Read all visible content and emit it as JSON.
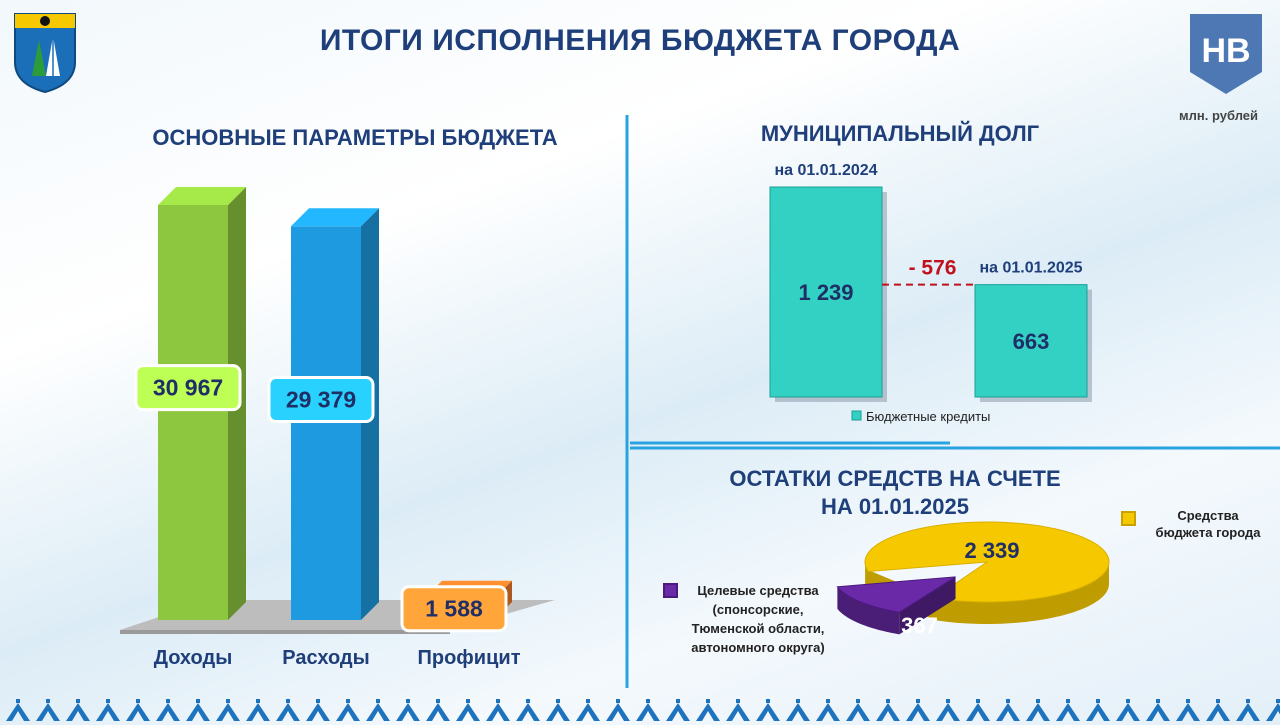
{
  "header": {
    "title": "ИТОГИ ИСПОЛНЕНИЯ БЮДЖЕТА ГОРОДА",
    "logo_text": "НВ",
    "units": "млн. рублей"
  },
  "colors": {
    "green": "#8dc63f",
    "blue": "#1e9be0",
    "orange": "#f07a2a",
    "teal": "#33d1c4",
    "yellow": "#f5c800",
    "purple": "#6a2aa8",
    "title": "#1f3f7a",
    "delta": "#c0121c"
  },
  "chart_data": [
    {
      "id": "budget-params",
      "type": "bar",
      "title": "ОСНОВНЫЕ ПАРАМЕТРЫ БЮДЖЕТА",
      "categories": [
        "Доходы",
        "Расходы",
        "Профицит"
      ],
      "values": [
        30967,
        29379,
        1588
      ],
      "value_labels": [
        "30 967",
        "29 379",
        "1 588"
      ]
    },
    {
      "id": "municipal-debt",
      "type": "bar",
      "title": "МУНИЦИПАЛЬНЫЙ ДОЛГ",
      "categories": [
        "на 01.01.2024",
        "на 01.01.2025"
      ],
      "series": [
        {
          "name": "Бюджетные кредиты",
          "values": [
            1239,
            663
          ]
        }
      ],
      "value_labels": [
        "1 239",
        "663"
      ],
      "annotation": "- 576"
    },
    {
      "id": "account-balance",
      "type": "pie",
      "title": "ОСТАТКИ СРЕДСТВ НА СЧЕТЕ",
      "subtitle": "НА 01.01.2025",
      "slices": [
        {
          "label": "Средства бюджета города",
          "value": 2339,
          "value_label": "2 339"
        },
        {
          "label": "Целевые средства (спонсорские, Тюменской области, автономного округа)",
          "value": 367,
          "value_label": "367"
        }
      ]
    }
  ]
}
